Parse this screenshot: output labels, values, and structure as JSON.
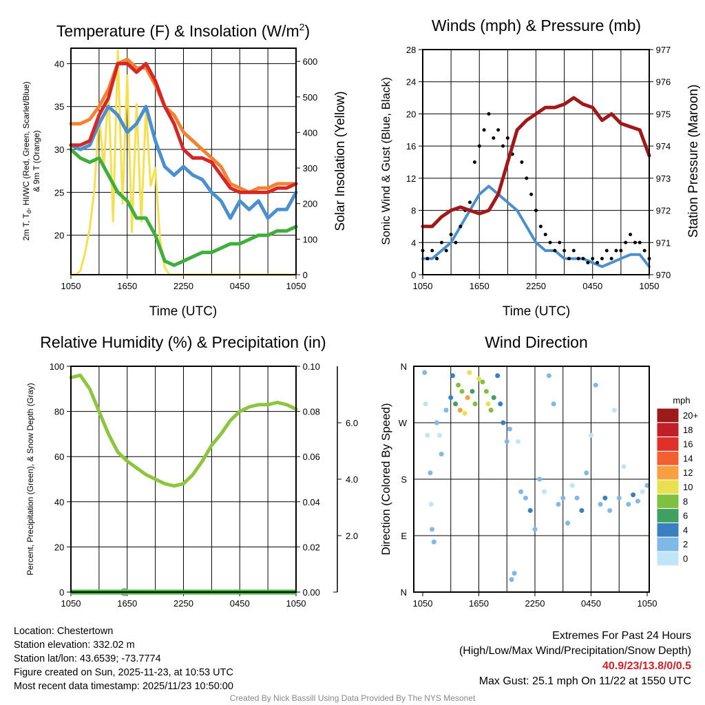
{
  "x_ticks": [
    "1050",
    "1650",
    "2250",
    "0450",
    "1050"
  ],
  "chart_data": [
    {
      "type": "line",
      "title": "Temperature (F) & Insolation (W/m2)",
      "title_main": "Temperature (F) & Insolation (W/m",
      "title_sup": "2",
      "title_end": ")",
      "xlabel": "Time (UTC)",
      "ylabel_line1": "2m T, T",
      "ylabel_sub": "d",
      "ylabel_line1_end": ", HI/WC (Red, Green, Scarlet/Blue)",
      "ylabel_line2": "& 9m T (Orange)",
      "y2label": "Solar Insolation (Yellow)",
      "ylim": [
        15.4,
        41.8
      ],
      "y2lim": [
        0,
        637
      ],
      "yticks": [
        20,
        25,
        30,
        35,
        40
      ],
      "y2ticks": [
        0,
        100,
        200,
        300,
        400,
        500,
        600
      ],
      "x_hours": [
        0,
        1,
        2,
        3,
        4,
        5,
        6,
        7,
        8,
        9,
        10,
        11,
        12,
        13,
        14,
        15,
        16,
        17,
        18,
        19,
        20,
        21,
        22,
        23,
        24
      ],
      "series": [
        {
          "name": "9m T",
          "color": "#f58231",
          "axis": "left",
          "values": [
            33,
            33,
            33.5,
            35,
            37,
            40,
            40.5,
            39.5,
            39.5,
            37.5,
            35,
            34,
            32,
            31,
            30,
            29,
            28,
            26,
            25.5,
            25,
            25.5,
            25.5,
            26,
            26,
            26
          ]
        },
        {
          "name": "HI/WC",
          "color": "#4a90d0",
          "axis": "left",
          "values": [
            30.5,
            30,
            30.5,
            33,
            35,
            34,
            32,
            33,
            35,
            31,
            28,
            27,
            28,
            27,
            26.5,
            25,
            24,
            22,
            24,
            23,
            24,
            22,
            23,
            23,
            25
          ]
        },
        {
          "name": "2m T",
          "color": "#d62728",
          "axis": "left",
          "values": [
            30.5,
            30.5,
            31,
            34,
            36,
            40,
            40,
            39,
            40,
            38,
            35,
            33,
            30,
            29,
            29,
            28.5,
            27,
            25.5,
            25,
            25,
            25,
            25,
            25.5,
            25.5,
            26
          ]
        },
        {
          "name": "Td",
          "color": "#3fae3a",
          "axis": "left",
          "values": [
            30,
            29,
            28.5,
            29,
            27,
            25,
            24,
            22,
            22,
            20,
            17,
            16.5,
            17,
            17.5,
            18,
            18,
            18.5,
            19,
            19,
            19.5,
            20,
            20,
            20.5,
            20.5,
            21
          ]
        }
      ],
      "insolation": {
        "name": "Solar Insolation",
        "color": "#f5e050",
        "x_hours": [
          0,
          0.5,
          1,
          1.5,
          2,
          2.5,
          3,
          3.5,
          4,
          4.5,
          5,
          5.5,
          6,
          6.5,
          7,
          7.5,
          8,
          8.5,
          9,
          9.5,
          10,
          10.5,
          11,
          12,
          13,
          14,
          15,
          16,
          17,
          18,
          19,
          20,
          21,
          22,
          23,
          24
        ],
        "values": [
          0,
          0,
          10,
          60,
          130,
          240,
          450,
          300,
          520,
          150,
          630,
          200,
          560,
          120,
          480,
          150,
          470,
          250,
          300,
          100,
          20,
          0,
          0,
          0,
          0,
          0,
          0,
          0,
          0,
          0,
          0,
          0,
          0,
          0,
          0,
          0
        ]
      }
    },
    {
      "type": "line",
      "title": "Winds (mph) & Pressure (mb)",
      "xlabel": "Time (UTC)",
      "ylabel": "Sonic Wind & Gust (Blue, Black)",
      "y2label": "Station Pressure (Maroon)",
      "ylim": [
        0,
        28
      ],
      "y2lim": [
        970,
        977
      ],
      "yticks": [
        0,
        4,
        8,
        12,
        16,
        20,
        24,
        28
      ],
      "y2ticks": [
        970,
        971,
        972,
        973,
        974,
        975,
        976,
        977
      ],
      "x_hours": [
        0,
        1,
        2,
        3,
        4,
        5,
        6,
        7,
        8,
        9,
        10,
        11,
        12,
        13,
        14,
        15,
        16,
        17,
        18,
        19,
        20,
        21,
        22,
        23,
        24
      ],
      "sonic_wind": {
        "color": "#4a90d0",
        "values": [
          2,
          2,
          3,
          4,
          6,
          8,
          10,
          11,
          10,
          9,
          8,
          6,
          4,
          3,
          3,
          2,
          2,
          2,
          1.5,
          1,
          1.5,
          2,
          2.5,
          2.5,
          1
        ]
      },
      "pressure": {
        "color": "#a01818",
        "values": [
          971.5,
          971.5,
          971.8,
          972,
          972.1,
          972,
          971.9,
          972,
          972.5,
          973.5,
          974.5,
          974.8,
          975,
          975.2,
          975.2,
          975.3,
          975.5,
          975.3,
          975.2,
          974.8,
          975,
          974.7,
          974.6,
          974.5,
          973.7
        ]
      },
      "gust": {
        "color": "#000000",
        "step_hours": 0.5,
        "values": [
          3,
          2,
          3,
          2,
          4,
          3,
          5,
          4,
          6,
          8,
          9,
          14,
          16,
          18,
          20,
          17,
          18,
          16,
          17,
          15,
          18,
          14,
          12,
          10,
          8,
          6,
          5,
          4,
          3,
          4,
          3,
          2,
          3,
          2,
          2,
          1.5,
          2,
          1.5,
          2,
          3,
          2,
          3,
          3,
          4,
          5,
          4,
          4,
          3,
          2
        ]
      }
    },
    {
      "type": "line",
      "title": "Relative Humidity (%) & Precipitation (in)",
      "ylabel": "Percent, Precipitation (Green), & Snow Depth (Gray)",
      "ylim": [
        0,
        100
      ],
      "y2lim": [
        0,
        0.1
      ],
      "yticks": [
        0,
        20,
        40,
        60,
        80,
        100
      ],
      "y2ticks": [
        "0.00",
        "0.02",
        "0.04",
        "0.06",
        "0.08",
        "0.10"
      ],
      "snow_ticks": [
        "2.0",
        "4.0",
        "6.0"
      ],
      "snow_lim": [
        0,
        8
      ],
      "x_hours": [
        0,
        1,
        2,
        3,
        4,
        5,
        6,
        7,
        8,
        9,
        10,
        11,
        12,
        13,
        14,
        15,
        16,
        17,
        18,
        19,
        20,
        21,
        22,
        23,
        24
      ],
      "rh": {
        "color": "#8cc63f",
        "values": [
          95,
          96,
          90,
          80,
          70,
          62,
          58,
          55,
          52,
          50,
          48,
          47,
          48,
          52,
          58,
          65,
          70,
          76,
          80,
          82,
          83,
          83,
          84,
          83,
          81
        ]
      },
      "precip": {
        "color": "#3fae3a",
        "value": 0
      },
      "snow_depth": {
        "color": "#aaaaaa",
        "value": 0
      }
    },
    {
      "type": "scatter",
      "title": "Wind Direction",
      "ylabel": "Direction (Colored By Speed)",
      "yticks": [
        "N",
        "W",
        "S",
        "E",
        "N"
      ],
      "ytick_degrees": [
        360,
        270,
        180,
        90,
        0
      ],
      "colorbar_title": "mph",
      "colorbar": [
        {
          "label": "20+",
          "color": "#9b1a1a"
        },
        {
          "label": "18",
          "color": "#c0202a"
        },
        {
          "label": "16",
          "color": "#e0302a"
        },
        {
          "label": "14",
          "color": "#f06030"
        },
        {
          "label": "12",
          "color": "#f8a040"
        },
        {
          "label": "10",
          "color": "#e8e050"
        },
        {
          "label": "8",
          "color": "#80c040"
        },
        {
          "label": "6",
          "color": "#40a060"
        },
        {
          "label": "4",
          "color": "#3a80c0"
        },
        {
          "label": "2",
          "color": "#80b8e8"
        },
        {
          "label": "0",
          "color": "#c0e4f8"
        }
      ],
      "points": [
        [
          0.2,
          350,
          2
        ],
        [
          0.3,
          300,
          1
        ],
        [
          0.5,
          250,
          1
        ],
        [
          0.8,
          190,
          3
        ],
        [
          0.9,
          140,
          1
        ],
        [
          1,
          100,
          2
        ],
        [
          1.2,
          80,
          3
        ],
        [
          1.5,
          270,
          2
        ],
        [
          1.8,
          250,
          1
        ],
        [
          2,
          220,
          2
        ],
        [
          2.5,
          290,
          3
        ],
        [
          3,
          310,
          4
        ],
        [
          3.2,
          345,
          5
        ],
        [
          3.5,
          300,
          6
        ],
        [
          3.8,
          330,
          9
        ],
        [
          4,
          290,
          12
        ],
        [
          4.2,
          320,
          8
        ],
        [
          4.5,
          285,
          11
        ],
        [
          4.8,
          310,
          13
        ],
        [
          5,
          350,
          10
        ],
        [
          5.3,
          320,
          7
        ],
        [
          5.6,
          300,
          9
        ],
        [
          6,
          340,
          11
        ],
        [
          6.4,
          335,
          9
        ],
        [
          6.8,
          320,
          8
        ],
        [
          7,
          300,
          10
        ],
        [
          7.3,
          290,
          8
        ],
        [
          7.6,
          310,
          6
        ],
        [
          8,
          345,
          5
        ],
        [
          8.3,
          300,
          4
        ],
        [
          8.6,
          270,
          4
        ],
        [
          9,
          240,
          2
        ],
        [
          9.3,
          260,
          3
        ],
        [
          9.5,
          20,
          2
        ],
        [
          9.8,
          30,
          3
        ],
        [
          10.2,
          240,
          1
        ],
        [
          10.5,
          160,
          2
        ],
        [
          11,
          150,
          3
        ],
        [
          11.5,
          130,
          4
        ],
        [
          12,
          100,
          2
        ],
        [
          12.5,
          180,
          3
        ],
        [
          13,
          160,
          1
        ],
        [
          13.5,
          345,
          2
        ],
        [
          14,
          300,
          3
        ],
        [
          14.5,
          140,
          2
        ],
        [
          15,
          150,
          3
        ],
        [
          15.5,
          110,
          2
        ],
        [
          16,
          170,
          1
        ],
        [
          16.5,
          150,
          3
        ],
        [
          17,
          130,
          4
        ],
        [
          17.5,
          190,
          2
        ],
        [
          18,
          250,
          1
        ],
        [
          18.5,
          330,
          2
        ],
        [
          19,
          140,
          3
        ],
        [
          19.5,
          150,
          4
        ],
        [
          20,
          130,
          3
        ],
        [
          20.5,
          290,
          1
        ],
        [
          21,
          150,
          2
        ],
        [
          21.5,
          200,
          1
        ],
        [
          22,
          140,
          3
        ],
        [
          22.5,
          155,
          4
        ],
        [
          23,
          145,
          2
        ],
        [
          23.5,
          160,
          1
        ],
        [
          24,
          170,
          2
        ]
      ]
    }
  ],
  "info": {
    "location": "Location: Chestertown",
    "elevation": "Station elevation: 332.02 m",
    "latlon": "Station lat/lon: 43.6539; -73.7774",
    "created": "Figure created on Sun, 2025-11-23, at 10:53 UTC",
    "recent": "Most recent data timestamp: 2025/11/23 10:50:00"
  },
  "extremes": {
    "title": "Extremes For Past 24 Hours",
    "subtitle": "(High/Low/Max Wind/Precipitation/Snow Depth)",
    "values": "40.9/23/13.8/0/0.5",
    "max_gust": "Max Gust: 25.1 mph On 11/22 at 1550 UTC"
  },
  "credit": "Created By Nick Bassill Using Data Provided By The NYS Mesonet"
}
